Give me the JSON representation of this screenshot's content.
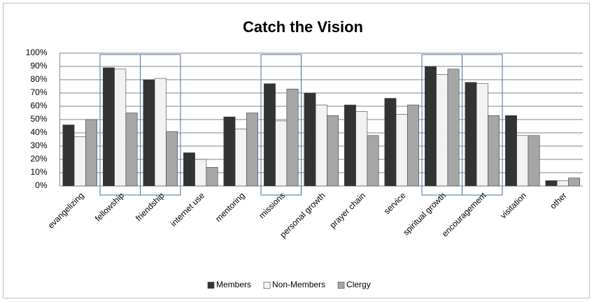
{
  "chart_data": {
    "type": "bar",
    "title": "Catch the Vision",
    "categories": [
      "evangelizing",
      "fellowship",
      "friendship",
      "internet use",
      "mentoring",
      "missions",
      "personal growth",
      "prayer chain",
      "service",
      "spiritual growth",
      "encouragement",
      "visitation",
      "other"
    ],
    "series": [
      {
        "name": "Members",
        "color": "#333333",
        "values": [
          46,
          89,
          80,
          25,
          52,
          77,
          70,
          61,
          66,
          90,
          78,
          53,
          4
        ]
      },
      {
        "name": "Non-Members",
        "color": "#f2f2f2",
        "values": [
          37,
          88,
          81,
          20,
          43,
          49,
          61,
          56,
          54,
          84,
          77,
          38,
          4
        ]
      },
      {
        "name": "Clergy",
        "color": "#a6a6a6",
        "values": [
          50,
          55,
          41,
          14,
          55,
          73,
          53,
          38,
          61,
          88,
          53,
          38,
          6
        ]
      }
    ],
    "ylim": [
      0,
      100
    ],
    "yticks": [
      {
        "value": 0,
        "label": "0%"
      },
      {
        "value": 10,
        "label": "10%"
      },
      {
        "value": 20,
        "label": "20%"
      },
      {
        "value": 30,
        "label": "30%"
      },
      {
        "value": 40,
        "label": "40%"
      },
      {
        "value": 50,
        "label": "50%"
      },
      {
        "value": 60,
        "label": "60%"
      },
      {
        "value": 70,
        "label": "70%"
      },
      {
        "value": 80,
        "label": "80%"
      },
      {
        "value": 90,
        "label": "90%"
      },
      {
        "value": 100,
        "label": "100%"
      }
    ],
    "grid": true,
    "legend": "bottom",
    "highlighted_categories": [
      1,
      2,
      5,
      9,
      10
    ]
  }
}
